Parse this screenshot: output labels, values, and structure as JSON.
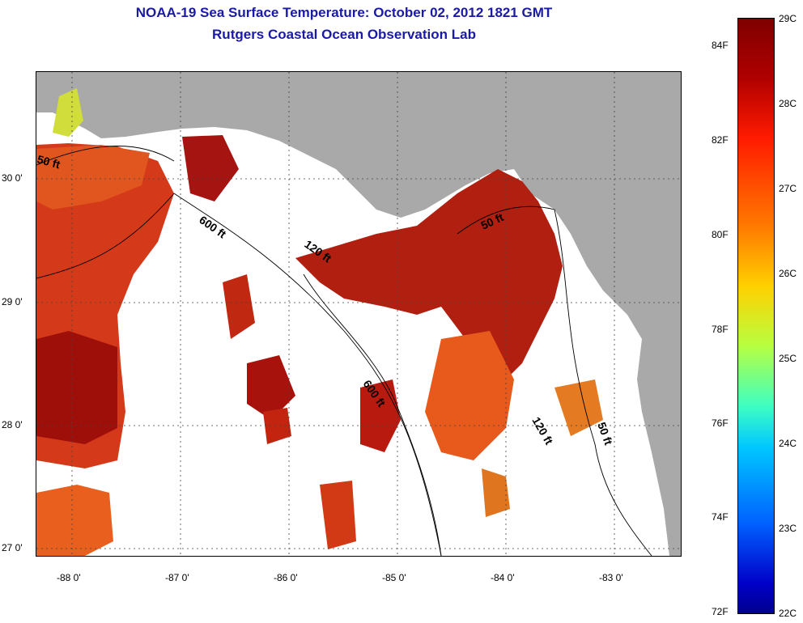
{
  "title_line1": "NOAA-19 Sea Surface Temperature:  October 02, 2012 1821 GMT",
  "title_line2": "Rutgers Coastal Ocean Observation Lab",
  "axes": {
    "lat_labels": [
      "30 0'",
      "29 0'",
      "28 0'",
      "27 0'"
    ],
    "lon_labels": [
      "-88 0'",
      "-87 0'",
      "-86 0'",
      "-85 0'",
      "-84 0'",
      "-83 0'"
    ]
  },
  "isobaths": [
    "50 ft",
    "600 ft",
    "120 ft",
    "50 ft",
    "600 ft",
    "120 ft",
    "50 ft"
  ],
  "colorbar": {
    "celsius": [
      "29C",
      "28C",
      "27C",
      "26C",
      "25C",
      "24C",
      "23C",
      "22C"
    ],
    "fahrenheit": [
      "84F",
      "82F",
      "80F",
      "78F",
      "76F",
      "74F",
      "72F"
    ]
  },
  "colors": {
    "land": "#a9a9a9",
    "title": "#1a1aa6",
    "no_data": "#ffffff"
  }
}
